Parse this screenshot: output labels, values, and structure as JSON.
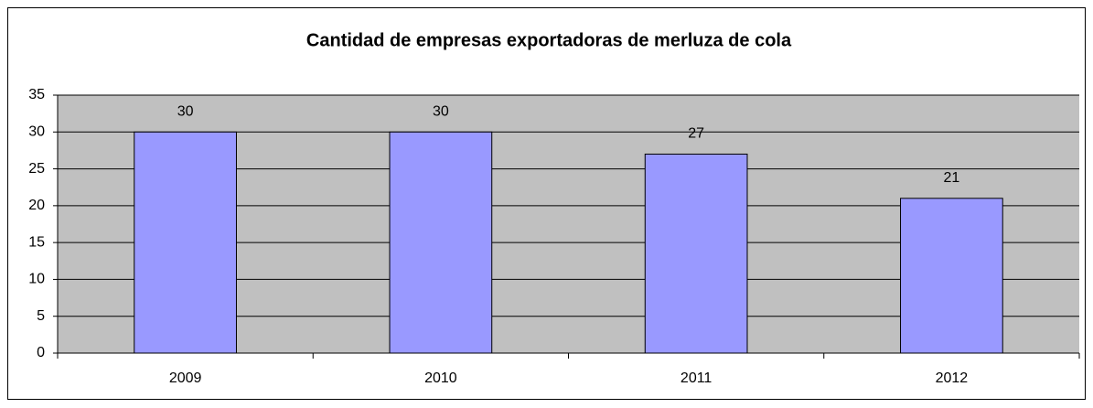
{
  "chart_data": {
    "type": "bar",
    "title": "Cantidad de empresas exportadoras de merluza de cola",
    "categories": [
      "2009",
      "2010",
      "2011",
      "2012"
    ],
    "values": [
      30,
      30,
      27,
      21
    ],
    "color": "#9999ff",
    "ylim": [
      0,
      35
    ],
    "yticks": [
      0,
      5,
      10,
      15,
      20,
      25,
      30,
      35
    ],
    "grid": true,
    "plot_background": "#c0c0c0"
  }
}
